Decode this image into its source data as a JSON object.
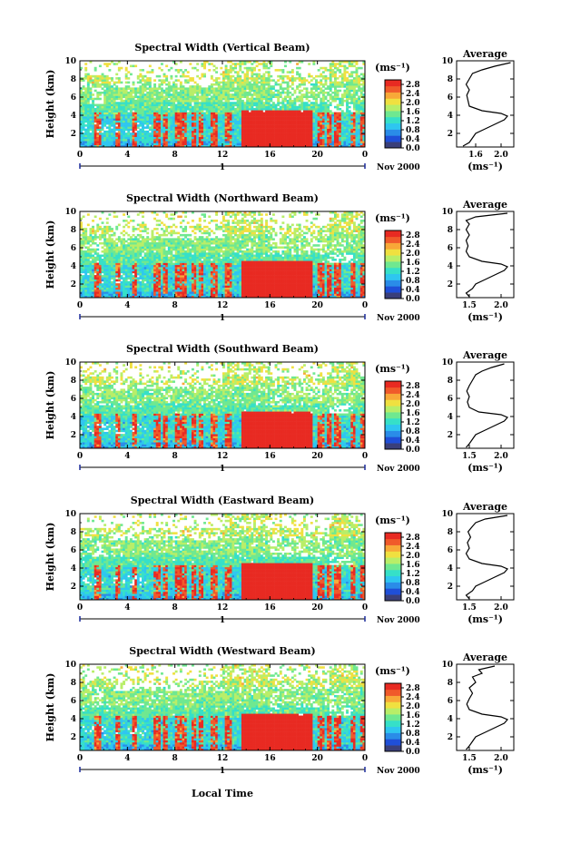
{
  "xlabel": "Local Time",
  "colorbar": {
    "unit": "(ms⁻¹)",
    "ticks": [
      "2.8",
      "2.4",
      "2.0",
      "1.6",
      "1.2",
      "0.8",
      "0.4",
      "0.0"
    ],
    "range": [
      0.0,
      3.0
    ],
    "colors": [
      "#3a3f7a",
      "#1f4fd8",
      "#2a8ce8",
      "#2ec6f0",
      "#36e0c8",
      "#6fe890",
      "#b8ee68",
      "#f0e040",
      "#f8a838",
      "#f05a2a",
      "#e82a22"
    ]
  },
  "avg_title": "Average",
  "avg_xlabel": "(ms⁻¹)",
  "chart_data": [
    {
      "type": "heatmap",
      "title": "Spectral Width (Vertical Beam)",
      "ylabel": "Height (km)",
      "xlim": [
        0,
        24
      ],
      "ylim": [
        0.5,
        10
      ],
      "xticks": [
        "0",
        "4",
        "8",
        "12",
        "16",
        "20",
        "0"
      ],
      "yticks": [
        "2",
        "4",
        "6",
        "8",
        "10"
      ],
      "date_label": "Nov 2000",
      "day_label": "1",
      "avg": {
        "xticks": [
          "1.6",
          "2.0"
        ],
        "xlim": [
          1.3,
          2.2
        ],
        "yticks": [
          "2",
          "4",
          "6",
          "8",
          "10"
        ],
        "profile": [
          [
            1.4,
            0.6
          ],
          [
            1.5,
            1.0
          ],
          [
            1.55,
            1.5
          ],
          [
            1.6,
            2.0
          ],
          [
            1.75,
            2.5
          ],
          [
            1.9,
            3.0
          ],
          [
            2.05,
            3.5
          ],
          [
            2.1,
            3.9
          ],
          [
            2.0,
            4.2
          ],
          [
            1.7,
            4.5
          ],
          [
            1.5,
            5.0
          ],
          [
            1.48,
            5.6
          ],
          [
            1.46,
            6.2
          ],
          [
            1.5,
            6.8
          ],
          [
            1.45,
            7.4
          ],
          [
            1.5,
            8.0
          ],
          [
            1.55,
            8.6
          ],
          [
            1.7,
            9.0
          ],
          [
            1.9,
            9.4
          ],
          [
            2.15,
            9.8
          ]
        ]
      }
    },
    {
      "type": "heatmap",
      "title": "Spectral Width (Northward Beam)",
      "ylabel": "Height (km)",
      "xlim": [
        0,
        24
      ],
      "ylim": [
        0.5,
        10
      ],
      "xticks": [
        "0",
        "4",
        "8",
        "12",
        "16",
        "20",
        "0"
      ],
      "yticks": [
        "2",
        "4",
        "6",
        "8",
        "10"
      ],
      "date_label": "Nov 2000",
      "day_label": "1",
      "avg": {
        "xticks": [
          "1.5",
          "2.0"
        ],
        "xlim": [
          1.3,
          2.2
        ],
        "yticks": [
          "2",
          "4",
          "6",
          "8",
          "10"
        ],
        "profile": [
          [
            1.5,
            0.6
          ],
          [
            1.45,
            1.0
          ],
          [
            1.55,
            1.5
          ],
          [
            1.6,
            2.0
          ],
          [
            1.75,
            2.5
          ],
          [
            1.9,
            3.0
          ],
          [
            2.05,
            3.5
          ],
          [
            2.1,
            3.9
          ],
          [
            2.0,
            4.2
          ],
          [
            1.7,
            4.5
          ],
          [
            1.5,
            5.0
          ],
          [
            1.45,
            5.6
          ],
          [
            1.48,
            6.2
          ],
          [
            1.45,
            6.8
          ],
          [
            1.5,
            7.4
          ],
          [
            1.45,
            8.0
          ],
          [
            1.5,
            8.6
          ],
          [
            1.45,
            9.0
          ],
          [
            1.6,
            9.4
          ],
          [
            2.1,
            9.8
          ]
        ]
      }
    },
    {
      "type": "heatmap",
      "title": "Spectral Width (Southward Beam)",
      "ylabel": "Height (km)",
      "xlim": [
        0,
        24
      ],
      "ylim": [
        0.5,
        10
      ],
      "xticks": [
        "0",
        "4",
        "8",
        "12",
        "16",
        "20",
        "0"
      ],
      "yticks": [
        "2",
        "4",
        "6",
        "8",
        "10"
      ],
      "date_label": "Nov 2000",
      "day_label": "1",
      "avg": {
        "xticks": [
          "1.5",
          "2.0"
        ],
        "xlim": [
          1.3,
          2.2
        ],
        "yticks": [
          "2",
          "4",
          "6",
          "8",
          "10"
        ],
        "profile": [
          [
            1.45,
            0.6
          ],
          [
            1.5,
            1.0
          ],
          [
            1.55,
            1.5
          ],
          [
            1.6,
            2.0
          ],
          [
            1.75,
            2.5
          ],
          [
            1.9,
            3.0
          ],
          [
            2.05,
            3.5
          ],
          [
            2.1,
            3.9
          ],
          [
            2.0,
            4.2
          ],
          [
            1.65,
            4.5
          ],
          [
            1.5,
            5.0
          ],
          [
            1.47,
            5.6
          ],
          [
            1.5,
            6.2
          ],
          [
            1.46,
            6.8
          ],
          [
            1.5,
            7.4
          ],
          [
            1.55,
            8.0
          ],
          [
            1.6,
            8.6
          ],
          [
            1.7,
            9.0
          ],
          [
            1.85,
            9.4
          ],
          [
            2.05,
            9.8
          ]
        ]
      }
    },
    {
      "type": "heatmap",
      "title": "Spectral Width (Eastward Beam)",
      "ylabel": "Height (km)",
      "xlim": [
        0,
        24
      ],
      "ylim": [
        0.5,
        10
      ],
      "xticks": [
        "0",
        "4",
        "8",
        "12",
        "16",
        "20",
        "0"
      ],
      "yticks": [
        "2",
        "4",
        "6",
        "8",
        "10"
      ],
      "date_label": "Nov 2000",
      "day_label": "1",
      "avg": {
        "xticks": [
          "1.5",
          "2.0"
        ],
        "xlim": [
          1.3,
          2.2
        ],
        "yticks": [
          "2",
          "4",
          "6",
          "8",
          "10"
        ],
        "profile": [
          [
            1.5,
            0.6
          ],
          [
            1.45,
            1.0
          ],
          [
            1.55,
            1.5
          ],
          [
            1.6,
            2.0
          ],
          [
            1.75,
            2.5
          ],
          [
            1.9,
            3.0
          ],
          [
            2.05,
            3.5
          ],
          [
            2.1,
            3.9
          ],
          [
            2.0,
            4.2
          ],
          [
            1.7,
            4.5
          ],
          [
            1.5,
            5.0
          ],
          [
            1.45,
            5.6
          ],
          [
            1.5,
            6.2
          ],
          [
            1.47,
            6.8
          ],
          [
            1.52,
            7.4
          ],
          [
            1.48,
            8.0
          ],
          [
            1.55,
            8.6
          ],
          [
            1.6,
            9.0
          ],
          [
            1.75,
            9.4
          ],
          [
            2.1,
            9.8
          ]
        ]
      }
    },
    {
      "type": "heatmap",
      "title": "Spectral Width (Westward Beam)",
      "ylabel": "Height (km)",
      "xlim": [
        0,
        24
      ],
      "ylim": [
        0.5,
        10
      ],
      "xticks": [
        "0",
        "4",
        "8",
        "12",
        "16",
        "20",
        "0"
      ],
      "yticks": [
        "2",
        "4",
        "6",
        "8",
        "10"
      ],
      "date_label": "Nov 2000",
      "day_label": "1",
      "avg": {
        "xticks": [
          "1.5",
          "2.0"
        ],
        "xlim": [
          1.3,
          2.2
        ],
        "yticks": [
          "2",
          "4",
          "6",
          "8",
          "10"
        ],
        "profile": [
          [
            1.45,
            0.6
          ],
          [
            1.5,
            1.0
          ],
          [
            1.55,
            1.5
          ],
          [
            1.6,
            2.0
          ],
          [
            1.75,
            2.5
          ],
          [
            1.9,
            3.0
          ],
          [
            2.05,
            3.5
          ],
          [
            2.1,
            3.9
          ],
          [
            2.0,
            4.2
          ],
          [
            1.7,
            4.5
          ],
          [
            1.5,
            5.0
          ],
          [
            1.46,
            5.6
          ],
          [
            1.5,
            6.2
          ],
          [
            1.55,
            6.8
          ],
          [
            1.5,
            7.4
          ],
          [
            1.6,
            8.0
          ],
          [
            1.55,
            8.6
          ],
          [
            1.7,
            9.0
          ],
          [
            1.65,
            9.4
          ],
          [
            1.9,
            9.8
          ]
        ]
      }
    }
  ]
}
